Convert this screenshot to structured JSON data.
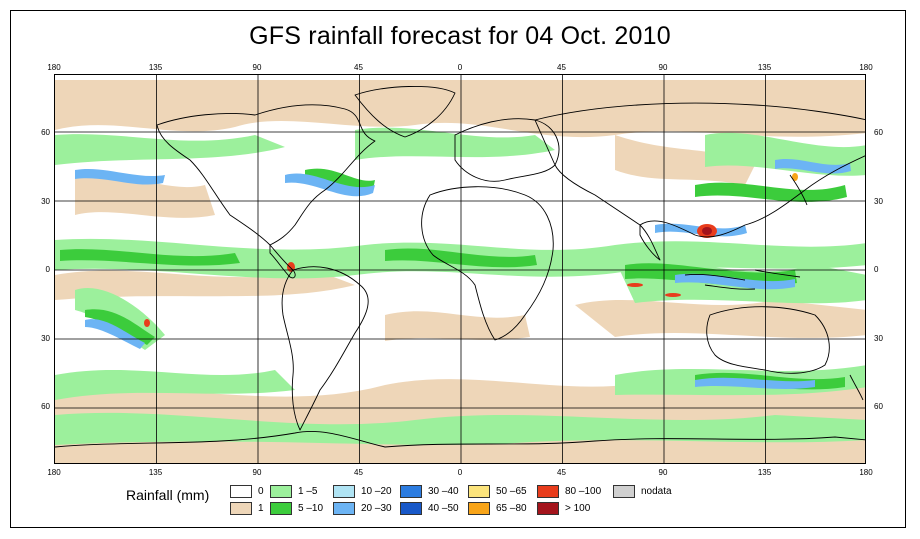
{
  "title": "GFS rainfall forecast for 04 Oct. 2010",
  "map": {
    "projection": "equirectangular",
    "lon_range": [
      -180,
      180
    ],
    "lat_range": [
      -85,
      85
    ],
    "lon_tick_labels": [
      "180",
      "135",
      "90",
      "45",
      "0",
      "45",
      "90",
      "135",
      "180"
    ],
    "lat_tick_labels": [
      "60",
      "30",
      "0",
      "30",
      "60"
    ],
    "grid_lons": [
      -135,
      -90,
      -45,
      0,
      45,
      90,
      135
    ],
    "grid_lats": [
      60,
      30,
      0,
      -30,
      -60
    ]
  },
  "legend": {
    "title": "Rainfall (mm)",
    "items": [
      {
        "label": "0",
        "color": "#ffffff"
      },
      {
        "label": "1",
        "color": "#eed6b8"
      },
      {
        "label": "1 –5",
        "color": "#9cf09c"
      },
      {
        "label": "5 –10",
        "color": "#3ccc3c"
      },
      {
        "label": "10 –20",
        "color": "#b0e4f4"
      },
      {
        "label": "20 –30",
        "color": "#6cb4f4"
      },
      {
        "label": "30 –40",
        "color": "#2c7ce0"
      },
      {
        "label": "40 –50",
        "color": "#1858c8"
      },
      {
        "label": "50 –65",
        "color": "#fce47c"
      },
      {
        "label": "65 –80",
        "color": "#f8a418"
      },
      {
        "label": "80 –100",
        "color": "#e83c1c"
      },
      {
        "label": "> 100",
        "color": "#a4141c"
      },
      {
        "label": "nodata",
        "color": "#d0d0d0"
      }
    ]
  }
}
